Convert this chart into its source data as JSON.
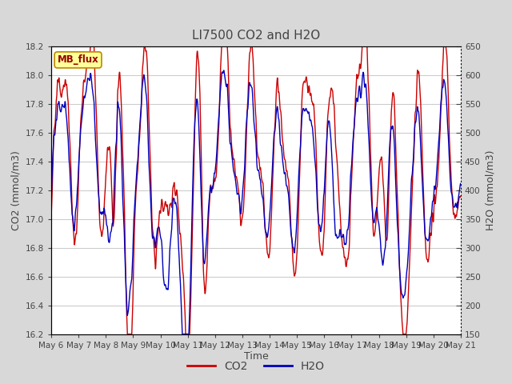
{
  "title": "LI7500 CO2 and H2O",
  "xlabel": "Time",
  "ylabel_left": "CO2 (mmol/m3)",
  "ylabel_right": "H2O (mmol/m3)",
  "co2_ylim": [
    16.2,
    18.2
  ],
  "h2o_ylim": [
    150,
    650
  ],
  "co2_yticks": [
    16.2,
    16.4,
    16.6,
    16.8,
    17.0,
    17.2,
    17.4,
    17.6,
    17.8,
    18.0,
    18.2
  ],
  "h2o_yticks": [
    150,
    200,
    250,
    300,
    350,
    400,
    450,
    500,
    550,
    600,
    650
  ],
  "x_tick_labels": [
    "May 6",
    "May 7",
    "May 8",
    "May 9",
    "May 10",
    "May 11",
    "May 12",
    "May 13",
    "May 14",
    "May 15",
    "May 16",
    "May 17",
    "May 18",
    "May 19",
    "May 20",
    "May 21"
  ],
  "n_days": 15,
  "legend_labels": [
    "CO2",
    "H2O"
  ],
  "co2_color": "#cc0000",
  "h2o_color": "#0000bb",
  "fig_bg_color": "#d8d8d8",
  "plot_bg_color": "#ffffff",
  "annotation_text": "MB_flux",
  "annotation_bg": "#ffff99",
  "annotation_border": "#bb8800",
  "title_color": "#444444",
  "axis_color": "#444444",
  "grid_color": "#cccccc",
  "linewidth": 1.0
}
